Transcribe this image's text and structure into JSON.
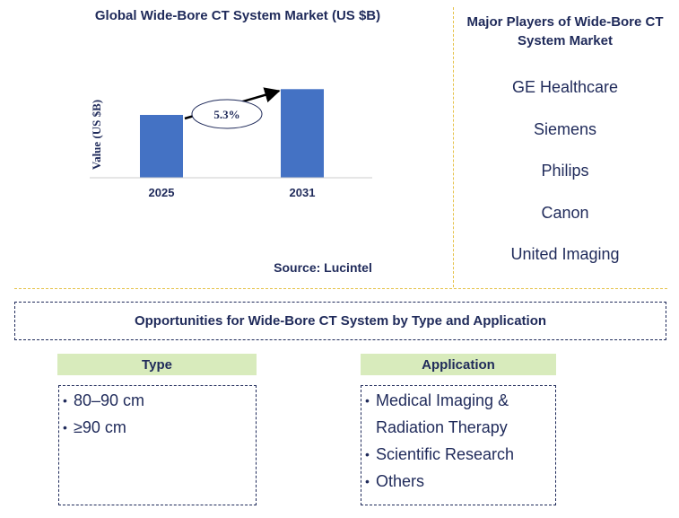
{
  "chart_data": {
    "type": "bar",
    "title": "Global Wide-Bore CT System Market (US $B)",
    "ylabel": "Value (US $B)",
    "categories": [
      "2025",
      "2031"
    ],
    "values": [
      1.0,
      1.41
    ],
    "ylim": [
      0,
      1.6
    ],
    "bar_color": "#4472c4",
    "annotation": "5.3%",
    "grid": false
  },
  "source": "Source: Lucintel",
  "players": {
    "title": "Major Players of Wide-Bore CT System Market",
    "items": [
      "GE Healthcare",
      "Siemens",
      "Philips",
      "Canon",
      "United Imaging"
    ]
  },
  "opportunities": {
    "title": "Opportunities for Wide-Bore CT System by Type and Application"
  },
  "segments": [
    {
      "header": "Type",
      "items": [
        "80–90 cm",
        "≥90 cm"
      ]
    },
    {
      "header": "Application",
      "items": [
        "Medical Imaging & Radiation Therapy",
        "Scientific Research",
        "Others"
      ]
    }
  ],
  "colors": {
    "text": "#1f2a5a",
    "divider": "#e6c24a",
    "header_bg": "#d8ebbc"
  }
}
